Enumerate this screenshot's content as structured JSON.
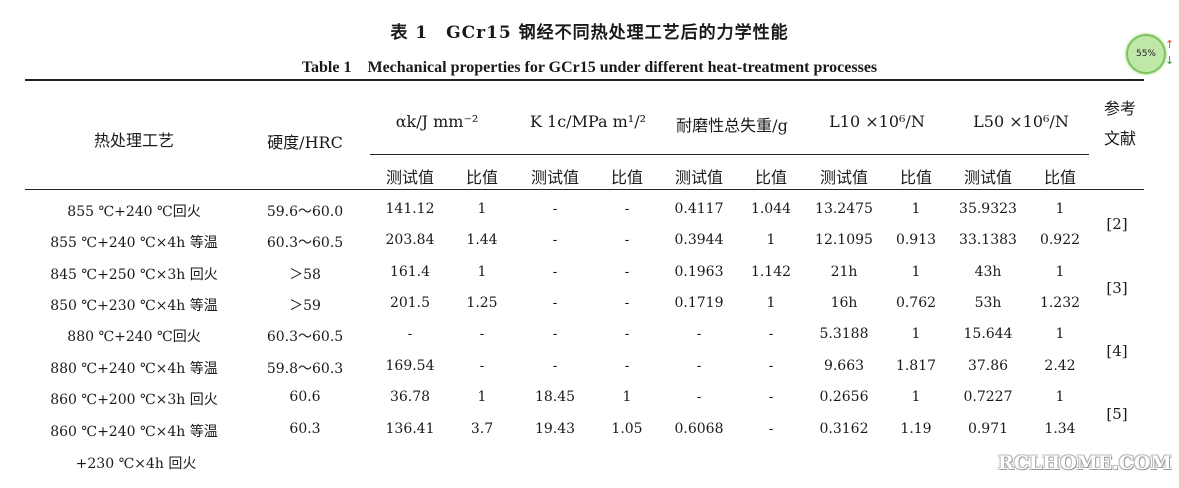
{
  "title_cn": "表 1　GCr15 钢经不同热处理工艺后的力学性能",
  "title_en": "Table 1　Mechanical properties for GCr15 under different heat-treatment processes",
  "headers": {
    "process": "热处理工艺",
    "hardness": "硬度/HRC",
    "ak": "αk/J mm⁻²",
    "k1c": "K 1c/MPa m¹/²",
    "wear": "耐磨性总失重/g",
    "l10": "L10 ×10⁶/N",
    "l50": "L50 ×10⁶/N",
    "ref_line1": "参考",
    "ref_line2": "文献",
    "test": "测试值",
    "ratio": "比值"
  },
  "rows": [
    {
      "process": "855 ℃+240 ℃回火",
      "hardness": "59.6～60.0",
      "ak_test": "141.12",
      "ak_ratio": "1",
      "k_test": "-",
      "k_ratio": "-",
      "wear_test": "0.4117",
      "wear_ratio": "1.044",
      "l10_test": "13.2475",
      "l10_ratio": "1",
      "l50_test": "35.9323",
      "l50_ratio": "1"
    },
    {
      "process": "855 ℃+240 ℃×4h 等温",
      "hardness": "60.3～60.5",
      "ak_test": "203.84",
      "ak_ratio": "1.44",
      "k_test": "-",
      "k_ratio": "-",
      "wear_test": "0.3944",
      "wear_ratio": "1",
      "l10_test": "12.1095",
      "l10_ratio": "0.913",
      "l50_test": "33.1383",
      "l50_ratio": "0.922"
    },
    {
      "process": "845 ℃+250 ℃×3h 回火",
      "hardness": "＞58",
      "ak_test": "161.4",
      "ak_ratio": "1",
      "k_test": "-",
      "k_ratio": "-",
      "wear_test": "0.1963",
      "wear_ratio": "1.142",
      "l10_test": "21h",
      "l10_ratio": "1",
      "l50_test": "43h",
      "l50_ratio": "1"
    },
    {
      "process": "850 ℃+230 ℃×4h 等温",
      "hardness": "＞59",
      "ak_test": "201.5",
      "ak_ratio": "1.25",
      "k_test": "-",
      "k_ratio": "-",
      "wear_test": "0.1719",
      "wear_ratio": "1",
      "l10_test": "16h",
      "l10_ratio": "0.762",
      "l50_test": "53h",
      "l50_ratio": "1.232"
    },
    {
      "process": "880 ℃+240 ℃回火",
      "hardness": "60.3～60.5",
      "ak_test": "-",
      "ak_ratio": "-",
      "k_test": "-",
      "k_ratio": "-",
      "wear_test": "-",
      "wear_ratio": "-",
      "l10_test": "5.3188",
      "l10_ratio": "1",
      "l50_test": "15.644",
      "l50_ratio": "1"
    },
    {
      "process": "880 ℃+240 ℃×4h 等温",
      "hardness": "59.8～60.3",
      "ak_test": "169.54",
      "ak_ratio": "-",
      "k_test": "-",
      "k_ratio": "-",
      "wear_test": "-",
      "wear_ratio": "-",
      "l10_test": "9.663",
      "l10_ratio": "1.817",
      "l50_test": "37.86",
      "l50_ratio": "2.42"
    },
    {
      "process": "860 ℃+200 ℃×3h 回火",
      "hardness": "60.6",
      "ak_test": "36.78",
      "ak_ratio": "1",
      "k_test": "18.45",
      "k_ratio": "1",
      "wear_test": "-",
      "wear_ratio": "-",
      "l10_test": "0.2656",
      "l10_ratio": "1",
      "l50_test": "0.7227",
      "l50_ratio": "1"
    },
    {
      "process": "860 ℃+240 ℃×4h 等温",
      "hardness": "60.3",
      "ak_test": "136.41",
      "ak_ratio": "3.7",
      "k_test": "19.43",
      "k_ratio": "1.05",
      "wear_test": "0.6068",
      "wear_ratio": "-",
      "l10_test": "0.3162",
      "l10_ratio": "1.19",
      "l50_test": "0.971",
      "l50_ratio": "1.34"
    }
  ],
  "continuation": "+230 ℃×4h 回火",
  "refs": [
    "[2]",
    "[3]",
    "[4]",
    "[5]"
  ],
  "widget": {
    "percent": "55%",
    "up_icon": "arrow-up-icon",
    "down_icon": "arrow-down-icon"
  },
  "watermark": "RCLHOME.COM"
}
